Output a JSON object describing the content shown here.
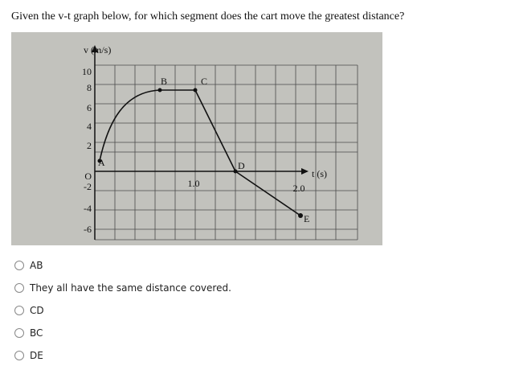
{
  "question": "Given the v-t graph below, for which segment does the cart move the greatest distance?",
  "figure": {
    "y_axis_label": "v (m/s)",
    "x_axis_label": "t (s)",
    "y_tick_labels": [
      "10",
      "8",
      "6",
      "4",
      "2",
      "O",
      "-2",
      "-4",
      "-6"
    ],
    "x_tick_labels": [
      "1.0",
      "2.0"
    ],
    "point_labels": [
      "A",
      "B",
      "C",
      "D",
      "E"
    ]
  },
  "options": [
    "AB",
    "They all have the same distance covered.",
    "CD",
    "BC",
    "DE"
  ]
}
